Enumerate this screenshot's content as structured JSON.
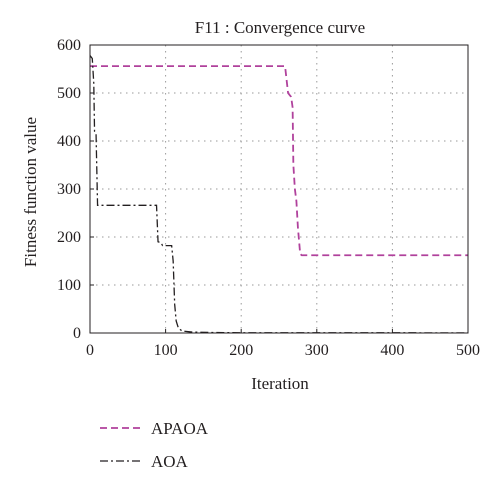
{
  "chart_data": {
    "type": "line",
    "title": "F11 : Convergence curve",
    "xlabel": "Iteration",
    "ylabel": "Fitness function value",
    "xlim": [
      0,
      500
    ],
    "ylim": [
      0,
      600
    ],
    "xticks": [
      0,
      100,
      200,
      300,
      400,
      500
    ],
    "yticks": [
      0,
      100,
      200,
      300,
      400,
      500,
      600
    ],
    "grid": true,
    "legend_position": "below",
    "series": [
      {
        "name": "APAOA",
        "color": "#b0419c",
        "dash": "dashed",
        "points": [
          [
            0,
            556
          ],
          [
            258,
            556
          ],
          [
            262,
            500
          ],
          [
            266,
            492
          ],
          [
            268,
            470
          ],
          [
            269,
            350
          ],
          [
            271,
            300
          ],
          [
            273,
            275
          ],
          [
            275,
            220
          ],
          [
            278,
            165
          ],
          [
            280,
            162
          ],
          [
            500,
            162
          ]
        ]
      },
      {
        "name": "AOA",
        "color": "#231f20",
        "dash": "dashdot",
        "points": [
          [
            0,
            578
          ],
          [
            3,
            572
          ],
          [
            5,
            520
          ],
          [
            6,
            420
          ],
          [
            8,
            415
          ],
          [
            10,
            266
          ],
          [
            88,
            266
          ],
          [
            90,
            190
          ],
          [
            94,
            188
          ],
          [
            96,
            182
          ],
          [
            108,
            182
          ],
          [
            110,
            150
          ],
          [
            112,
            60
          ],
          [
            114,
            25
          ],
          [
            117,
            10
          ],
          [
            122,
            4
          ],
          [
            135,
            2
          ],
          [
            160,
            1
          ],
          [
            200,
            0.5
          ],
          [
            500,
            0.3
          ]
        ]
      }
    ]
  }
}
